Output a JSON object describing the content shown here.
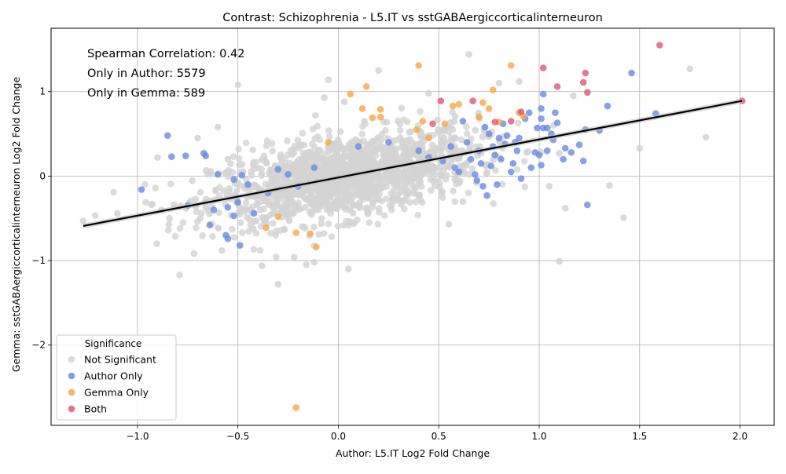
{
  "chart_data": {
    "type": "scatter",
    "title": "Contrast: Schizophrenia - L5.IT vs sstGABAergiccorticalinterneuron",
    "xlabel": "Author: L5.IT Log2 Fold Change",
    "ylabel": "Gemma: sstGABAergiccorticalinterneuron Log2 Fold Change",
    "xlim": [
      -1.43,
      2.17
    ],
    "ylim": [
      -2.95,
      1.75
    ],
    "xticks": [
      -1.0,
      -0.5,
      0.0,
      0.5,
      1.0,
      1.5,
      2.0
    ],
    "xtick_labels": [
      "−1.0",
      "−0.5",
      "0.0",
      "0.5",
      "1.0",
      "1.5",
      "2.0"
    ],
    "yticks": [
      -2,
      -1,
      0,
      1
    ],
    "ytick_labels": [
      "−2",
      "−1",
      "0",
      "1"
    ],
    "grid": true,
    "annotations": [
      "Spearman Correlation: 0.42",
      "Only in Author: 5579",
      "Only in Gemma: 589"
    ],
    "legend": {
      "title": "Significance",
      "position": "lower-left",
      "entries": [
        {
          "label": "Not Significant",
          "color": "#d3d3d3"
        },
        {
          "label": "Author Only",
          "color": "#6b8ae0"
        },
        {
          "label": "Gemma Only",
          "color": "#f5a848"
        },
        {
          "label": "Both",
          "color": "#dc5a78"
        }
      ]
    },
    "regression_line": {
      "x": [
        -1.27,
        2.01
      ],
      "y": [
        -0.59,
        0.89
      ],
      "color": "#000000"
    },
    "series": [
      {
        "name": "Author Only",
        "color": "#6b8ae0",
        "points": [
          [
            -0.98,
            -0.16
          ],
          [
            -0.85,
            0.48
          ],
          [
            -0.83,
            0.23
          ],
          [
            -0.76,
            0.24
          ],
          [
            -0.75,
            -0.35
          ],
          [
            -0.67,
            0.27
          ],
          [
            -0.66,
            0.24
          ],
          [
            -0.64,
            -0.58
          ],
          [
            -0.62,
            -0.4
          ],
          [
            -0.6,
            0.02
          ],
          [
            -0.56,
            -0.7
          ],
          [
            -0.55,
            -0.74
          ],
          [
            -0.55,
            -0.37
          ],
          [
            -0.52,
            -0.47
          ],
          [
            -0.52,
            -0.04
          ],
          [
            -0.5,
            -0.31
          ],
          [
            -0.49,
            -0.82
          ],
          [
            -0.48,
            0.01
          ],
          [
            -0.45,
            -0.1
          ],
          [
            -0.42,
            -0.44
          ],
          [
            -0.35,
            -0.2
          ],
          [
            -0.3,
            0.08
          ],
          [
            -0.25,
            0.02
          ],
          [
            -0.2,
            -0.12
          ],
          [
            -0.12,
            0.1
          ],
          [
            0.1,
            0.35
          ],
          [
            0.25,
            0.4
          ],
          [
            0.4,
            0.3
          ],
          [
            0.45,
            0.22
          ],
          [
            0.52,
            0.18
          ],
          [
            0.56,
            0.35
          ],
          [
            0.58,
            0.1
          ],
          [
            0.6,
            0.05
          ],
          [
            0.62,
            0.65
          ],
          [
            0.64,
            0.4
          ],
          [
            0.66,
            0.2
          ],
          [
            0.68,
            0.02
          ],
          [
            0.69,
            -0.05
          ],
          [
            0.7,
            0.3
          ],
          [
            0.71,
            0.15
          ],
          [
            0.72,
            -0.12
          ],
          [
            0.73,
            0.58
          ],
          [
            0.74,
            -0.23
          ],
          [
            0.75,
            0.5
          ],
          [
            0.76,
            0.12
          ],
          [
            0.77,
            0.35
          ],
          [
            0.78,
            0.25
          ],
          [
            0.79,
            -0.1
          ],
          [
            0.8,
            0.45
          ],
          [
            0.81,
            0.2
          ],
          [
            0.82,
            0.62
          ],
          [
            0.83,
            0.38
          ],
          [
            0.84,
            0.48
          ],
          [
            0.86,
            0.05
          ],
          [
            0.87,
            0.15
          ],
          [
            0.88,
            0.4
          ],
          [
            0.89,
            0.3
          ],
          [
            0.9,
            0.45
          ],
          [
            0.91,
            -0.03
          ],
          [
            0.93,
            0.68
          ],
          [
            0.95,
            0.75
          ],
          [
            0.96,
            0.1
          ],
          [
            0.98,
            0.28
          ],
          [
            0.99,
            0.57
          ],
          [
            1.0,
            0.25
          ],
          [
            1.01,
            0.8
          ],
          [
            1.01,
            0.68
          ],
          [
            1.02,
            0.97
          ],
          [
            1.02,
            0.57
          ],
          [
            1.04,
            0.57
          ],
          [
            1.04,
            0.3
          ],
          [
            1.06,
            0.5
          ],
          [
            1.07,
            0.43
          ],
          [
            1.08,
            0.75
          ],
          [
            1.09,
            0.63
          ],
          [
            1.12,
            0.2
          ],
          [
            1.13,
            0.33
          ],
          [
            1.16,
            0.28
          ],
          [
            1.2,
            0.37
          ],
          [
            1.22,
            0.18
          ],
          [
            1.23,
            0.55
          ],
          [
            1.24,
            -0.34
          ],
          [
            1.3,
            0.54
          ],
          [
            1.34,
            0.83
          ],
          [
            1.46,
            1.22
          ],
          [
            1.58,
            0.74
          ],
          [
            1.01,
            0.13
          ]
        ]
      },
      {
        "name": "Gemma Only",
        "color": "#f5a848",
        "points": [
          [
            -0.36,
            -0.61
          ],
          [
            -0.21,
            -2.74
          ],
          [
            -0.21,
            -0.67
          ],
          [
            -0.14,
            -0.68
          ],
          [
            -0.11,
            -0.84
          ],
          [
            -0.05,
            0.4
          ],
          [
            0.06,
            0.97
          ],
          [
            0.12,
            0.8
          ],
          [
            0.14,
            1.06
          ],
          [
            0.17,
            0.69
          ],
          [
            0.21,
            0.7
          ],
          [
            0.21,
            0.79
          ],
          [
            0.39,
            0.55
          ],
          [
            0.4,
            1.31
          ],
          [
            0.42,
            0.65
          ],
          [
            0.53,
            0.62
          ],
          [
            0.57,
            0.83
          ],
          [
            0.6,
            0.85
          ],
          [
            0.7,
            0.7
          ],
          [
            0.72,
            0.87
          ],
          [
            0.75,
            0.8
          ],
          [
            0.77,
            1.02
          ],
          [
            0.8,
            0.64
          ],
          [
            0.86,
            1.31
          ],
          [
            0.9,
            0.75
          ],
          [
            0.92,
            0.71
          ],
          [
            -0.3,
            -0.48
          ],
          [
            0.45,
            0.45
          ]
        ]
      },
      {
        "name": "Both",
        "color": "#dc5a78",
        "points": [
          [
            0.47,
            0.62
          ],
          [
            0.51,
            0.89
          ],
          [
            0.67,
            0.89
          ],
          [
            0.78,
            0.64
          ],
          [
            0.86,
            0.65
          ],
          [
            0.91,
            0.76
          ],
          [
            1.02,
            1.28
          ],
          [
            1.09,
            1.06
          ],
          [
            1.22,
            1.11
          ],
          [
            1.23,
            1.22
          ],
          [
            1.24,
            0.99
          ],
          [
            1.6,
            1.55
          ],
          [
            2.01,
            0.89
          ]
        ]
      }
    ],
    "not_significant_outliers": [
      [
        -1.27,
        -0.53
      ],
      [
        -1.1,
        -0.44
      ],
      [
        -0.9,
        0.22
      ],
      [
        -0.88,
        -0.4
      ],
      [
        -0.79,
        -1.17
      ],
      [
        -0.7,
        0.45
      ],
      [
        -0.6,
        0.58
      ],
      [
        -0.5,
        1.08
      ],
      [
        -0.38,
        -1.06
      ],
      [
        -0.3,
        -1.28
      ],
      [
        -0.22,
        -0.96
      ],
      [
        -0.12,
        -1.02
      ],
      [
        -0.07,
        0.93
      ],
      [
        -0.05,
        1.14
      ],
      [
        0.05,
        -1.1
      ],
      [
        0.2,
        1.25
      ],
      [
        0.45,
        0.98
      ],
      [
        0.65,
        1.44
      ],
      [
        0.8,
        1.1
      ],
      [
        0.9,
        1.12
      ],
      [
        1.05,
        -0.12
      ],
      [
        1.1,
        -1.01
      ],
      [
        1.13,
        -0.38
      ],
      [
        1.17,
        0.95
      ],
      [
        1.35,
        -0.11
      ],
      [
        1.42,
        -0.49
      ],
      [
        1.5,
        0.33
      ],
      [
        1.75,
        1.27
      ],
      [
        1.83,
        0.46
      ],
      [
        0.03,
        0.88
      ],
      [
        -0.55,
        0.2
      ],
      [
        1.1,
        0.27
      ],
      [
        0.62,
        -0.3
      ],
      [
        0.55,
        -0.57
      ],
      [
        -0.58,
        -0.88
      ]
    ]
  }
}
